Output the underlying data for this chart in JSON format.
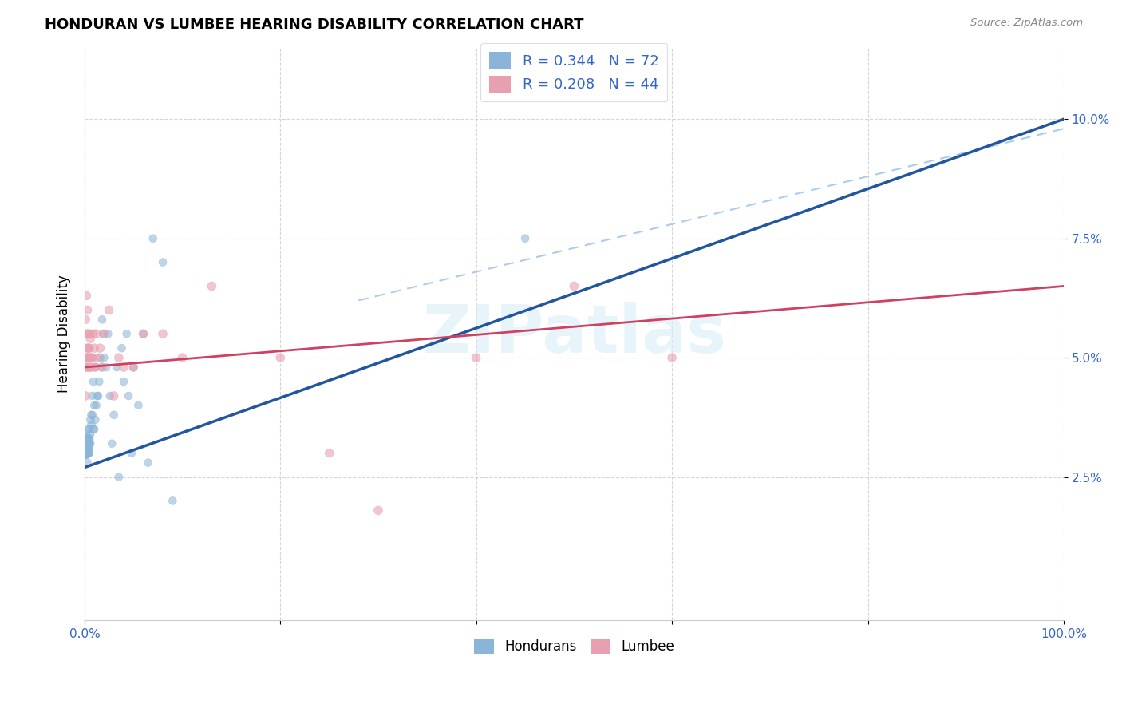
{
  "title": "HONDURAN VS LUMBEE HEARING DISABILITY CORRELATION CHART",
  "source": "Source: ZipAtlas.com",
  "ylabel": "Hearing Disability",
  "blue_color": "#8ab4d8",
  "pink_color": "#e8a0b0",
  "blue_line_color": "#2255a0",
  "pink_line_color": "#d04060",
  "dashed_line_color": "#aaccee",
  "legend_label_color": "#3366cc",
  "hondurans_label": "Hondurans",
  "lumbee_label": "Lumbee",
  "watermark": "ZIPatlas",
  "xlim": [
    0.0,
    1.0
  ],
  "ylim": [
    -0.005,
    0.115
  ],
  "xticks": [
    0.0,
    0.2,
    0.4,
    0.6,
    0.8,
    1.0
  ],
  "xtick_labels": [
    "0.0%",
    "",
    "",
    "",
    "",
    "100.0%"
  ],
  "yticks": [
    0.025,
    0.05,
    0.075,
    0.1
  ],
  "ytick_labels": [
    "2.5%",
    "5.0%",
    "7.5%",
    "10.0%"
  ],
  "legend_blue_label": "R = 0.344   N = 72",
  "legend_pink_label": "R = 0.208   N = 44",
  "blue_trendline": [
    0.0,
    1.0,
    0.027,
    0.1
  ],
  "pink_trendline": [
    0.0,
    1.0,
    0.048,
    0.065
  ],
  "dashed_trendline": [
    0.28,
    1.0,
    0.062,
    0.098
  ],
  "blue_scatter": {
    "x": [
      0.001,
      0.001,
      0.001,
      0.001,
      0.001,
      0.002,
      0.002,
      0.002,
      0.002,
      0.002,
      0.003,
      0.003,
      0.003,
      0.003,
      0.003,
      0.003,
      0.003,
      0.003,
      0.003,
      0.003,
      0.004,
      0.004,
      0.004,
      0.004,
      0.004,
      0.004,
      0.004,
      0.005,
      0.005,
      0.005,
      0.006,
      0.006,
      0.006,
      0.007,
      0.007,
      0.008,
      0.008,
      0.009,
      0.009,
      0.01,
      0.01,
      0.011,
      0.011,
      0.012,
      0.013,
      0.014,
      0.015,
      0.016,
      0.017,
      0.018,
      0.019,
      0.02,
      0.022,
      0.024,
      0.026,
      0.028,
      0.03,
      0.033,
      0.035,
      0.038,
      0.04,
      0.043,
      0.045,
      0.048,
      0.05,
      0.055,
      0.06,
      0.065,
      0.07,
      0.08,
      0.09,
      0.45
    ],
    "y": [
      0.033,
      0.031,
      0.03,
      0.032,
      0.03,
      0.032,
      0.03,
      0.028,
      0.033,
      0.03,
      0.03,
      0.031,
      0.032,
      0.03,
      0.031,
      0.03,
      0.033,
      0.03,
      0.031,
      0.03,
      0.03,
      0.031,
      0.032,
      0.03,
      0.033,
      0.035,
      0.03,
      0.032,
      0.035,
      0.033,
      0.034,
      0.037,
      0.032,
      0.036,
      0.038,
      0.038,
      0.042,
      0.035,
      0.045,
      0.035,
      0.04,
      0.037,
      0.048,
      0.04,
      0.042,
      0.042,
      0.045,
      0.05,
      0.048,
      0.058,
      0.055,
      0.05,
      0.048,
      0.055,
      0.042,
      0.032,
      0.038,
      0.048,
      0.025,
      0.052,
      0.045,
      0.055,
      0.042,
      0.03,
      0.048,
      0.04,
      0.055,
      0.028,
      0.075,
      0.07,
      0.02,
      0.075
    ],
    "sizes": [
      150,
      120,
      100,
      80,
      80,
      80,
      80,
      70,
      70,
      70,
      70,
      70,
      70,
      60,
      60,
      60,
      60,
      60,
      60,
      60,
      60,
      60,
      60,
      60,
      60,
      50,
      50,
      50,
      50,
      50,
      50,
      50,
      50,
      50,
      50,
      50,
      50,
      50,
      50,
      50,
      50,
      50,
      50,
      50,
      50,
      50,
      50,
      50,
      50,
      50,
      50,
      50,
      50,
      50,
      50,
      50,
      50,
      50,
      50,
      50,
      50,
      50,
      50,
      50,
      50,
      50,
      50,
      50,
      50,
      50,
      50,
      50
    ]
  },
  "pink_scatter": {
    "x": [
      0.001,
      0.001,
      0.001,
      0.002,
      0.002,
      0.002,
      0.003,
      0.003,
      0.003,
      0.003,
      0.004,
      0.004,
      0.004,
      0.005,
      0.005,
      0.005,
      0.006,
      0.006,
      0.007,
      0.007,
      0.008,
      0.009,
      0.01,
      0.011,
      0.012,
      0.014,
      0.016,
      0.018,
      0.02,
      0.025,
      0.03,
      0.035,
      0.04,
      0.05,
      0.06,
      0.08,
      0.1,
      0.13,
      0.2,
      0.25,
      0.3,
      0.4,
      0.5,
      0.6
    ],
    "y": [
      0.058,
      0.048,
      0.042,
      0.05,
      0.055,
      0.063,
      0.052,
      0.048,
      0.05,
      0.06,
      0.05,
      0.052,
      0.055,
      0.048,
      0.052,
      0.055,
      0.05,
      0.054,
      0.05,
      0.048,
      0.05,
      0.055,
      0.052,
      0.048,
      0.055,
      0.05,
      0.052,
      0.048,
      0.055,
      0.06,
      0.042,
      0.05,
      0.048,
      0.048,
      0.055,
      0.055,
      0.05,
      0.065,
      0.05,
      0.03,
      0.018,
      0.05,
      0.065,
      0.05
    ],
    "sizes": [
      60,
      60,
      60,
      60,
      60,
      60,
      60,
      60,
      60,
      60,
      60,
      60,
      60,
      60,
      60,
      60,
      60,
      60,
      60,
      60,
      60,
      60,
      60,
      60,
      60,
      60,
      60,
      60,
      60,
      60,
      60,
      60,
      60,
      60,
      60,
      60,
      60,
      60,
      60,
      60,
      60,
      60,
      60,
      60
    ]
  }
}
